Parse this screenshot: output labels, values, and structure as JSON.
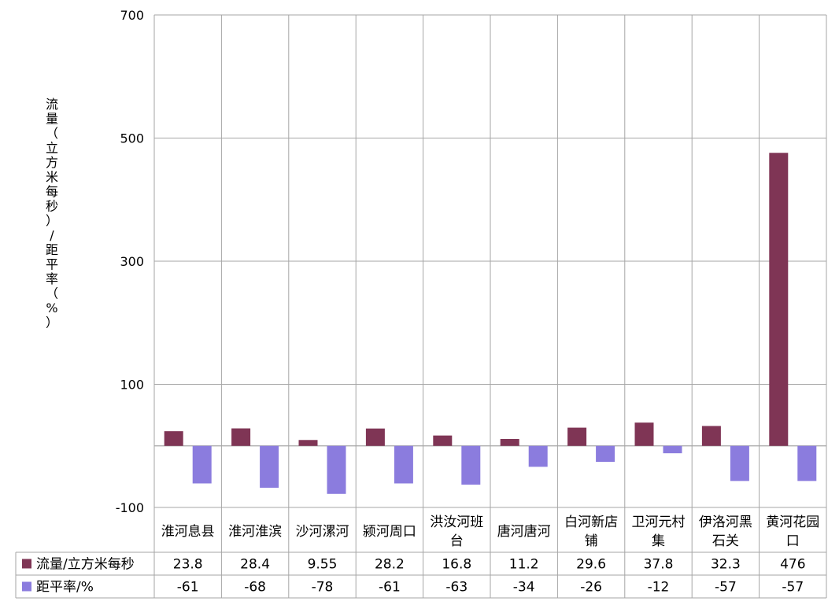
{
  "chart_data": {
    "type": "bar",
    "ylabel": "流量（立方米每秒）/距平率（%）",
    "ylim": [
      -100,
      700
    ],
    "yticks": [
      -100,
      100,
      300,
      500,
      700
    ],
    "categories": [
      [
        "淮河息县"
      ],
      [
        "淮河淮滨"
      ],
      [
        "沙河漯河"
      ],
      [
        "颍河周口"
      ],
      [
        "洪汝河班",
        "台"
      ],
      [
        "唐河唐河"
      ],
      [
        "白河新店",
        "铺"
      ],
      [
        "卫河元村",
        "集"
      ],
      [
        "伊洛河黑",
        "石关"
      ],
      [
        "黄河花园",
        "口"
      ]
    ],
    "series": [
      {
        "name": "流量/立方米每秒",
        "color": "#7f3555",
        "values": [
          23.8,
          28.4,
          9.55,
          28.2,
          16.8,
          11.2,
          29.6,
          37.8,
          32.3,
          476
        ],
        "labels": [
          "23.8",
          "28.4",
          "9.55",
          "28.2",
          "16.8",
          "11.2",
          "29.6",
          "37.8",
          "32.3",
          "476"
        ]
      },
      {
        "name": "距平率/%",
        "color": "#8b7cde",
        "values": [
          -61,
          -68,
          -78,
          -61,
          -63,
          -34,
          -26,
          -12,
          -57,
          -57
        ],
        "labels": [
          "-61",
          "-68",
          "-78",
          "-61",
          "-63",
          "-34",
          "-26",
          "-12",
          "-57",
          "-57"
        ]
      }
    ],
    "grid": true,
    "legend": "data-table"
  }
}
